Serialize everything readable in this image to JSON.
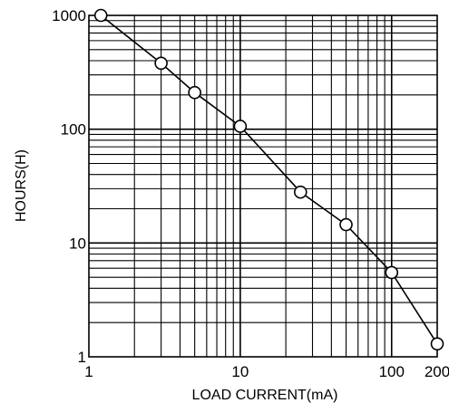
{
  "chart_data": {
    "type": "line",
    "title": "",
    "xlabel": "LOAD CURRENT(mA)",
    "ylabel": "HOURS(H)",
    "x_scale": "log",
    "y_scale": "log",
    "xlim": [
      1,
      200
    ],
    "ylim": [
      1,
      1000
    ],
    "x_tick_labels": [
      "1",
      "10",
      "100",
      "200"
    ],
    "x_tick_values": [
      1,
      10,
      100,
      200
    ],
    "y_tick_labels": [
      "1",
      "10",
      "100",
      "1000"
    ],
    "y_tick_values": [
      1,
      10,
      100,
      1000
    ],
    "grid": true,
    "legend": "none",
    "line_color": "#000000",
    "marker": "open-circle",
    "series": [
      {
        "x": [
          1.2,
          3,
          5,
          10,
          25,
          50,
          100,
          200
        ],
        "y": [
          1000,
          380,
          210,
          106,
          28,
          14.5,
          5.5,
          1.3
        ]
      }
    ]
  }
}
